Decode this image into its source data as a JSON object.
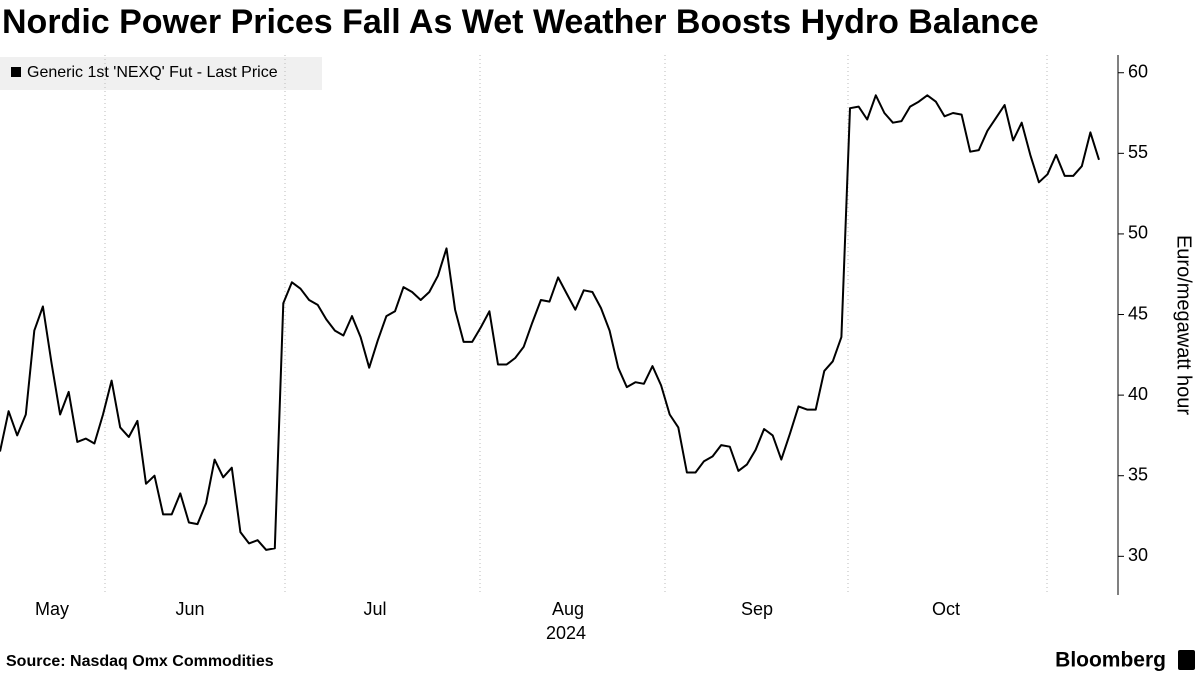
{
  "chart_data": {
    "type": "line",
    "title": "Nordic Power Prices Fall As Wet Weather Boosts Hydro Balance",
    "y_label": "Euro/megawatt hour",
    "source": "Source: Nasdaq Omx Commodities",
    "brand": "Bloomberg",
    "month_labels": [
      "May",
      "Jun",
      "Jul",
      "Aug",
      "Sep",
      "Oct"
    ],
    "year_label": "2024",
    "ylim": [
      27.6,
      61.1
    ],
    "yticks": [
      30,
      35,
      40,
      45,
      50,
      55,
      60
    ],
    "grid": true,
    "series": [
      {
        "name": "Generic 1st 'NEXQ' Fut - Last Price",
        "color": "#000000",
        "values": [
          36.5,
          39,
          37.5,
          38.8,
          44,
          45.5,
          42,
          38.8,
          40.2,
          37.1,
          37.3,
          37,
          38.8,
          40.9,
          38,
          37.4,
          38.4,
          34.5,
          35,
          32.6,
          32.6,
          33.9,
          32.1,
          32,
          33.3,
          36,
          34.9,
          35.5,
          31.5,
          30.8,
          31,
          30.4,
          30.5,
          45.7,
          47,
          46.6,
          45.9,
          45.6,
          44.7,
          44,
          43.7,
          44.9,
          43.6,
          41.7,
          43.4,
          44.9,
          45.2,
          46.7,
          46.4,
          45.9,
          46.4,
          47.4,
          49.1,
          45.3,
          43.3,
          43.3,
          44.2,
          45.2,
          41.9,
          41.9,
          42.3,
          43,
          44.5,
          45.9,
          45.8,
          47.3,
          46.3,
          45.3,
          46.5,
          46.4,
          45.4,
          44,
          41.7,
          40.5,
          40.8,
          40.7,
          41.8,
          40.6,
          38.8,
          38,
          35.2,
          35.2,
          35.9,
          36.2,
          36.9,
          36.8,
          35.3,
          35.7,
          36.6,
          37.9,
          37.5,
          36,
          37.6,
          39.3,
          39.1,
          39.1,
          41.5,
          42.1,
          43.6,
          57.8,
          57.9,
          57.1,
          58.6,
          57.5,
          56.9,
          57,
          57.9,
          58.2,
          58.6,
          58.2,
          57.3,
          57.5,
          57.4,
          55.1,
          55.2,
          56.4,
          57.2,
          58,
          55.8,
          56.9,
          54.9,
          53.2,
          53.7,
          54.9,
          53.6,
          53.6,
          54.2,
          56.3,
          54.6
        ]
      }
    ]
  }
}
